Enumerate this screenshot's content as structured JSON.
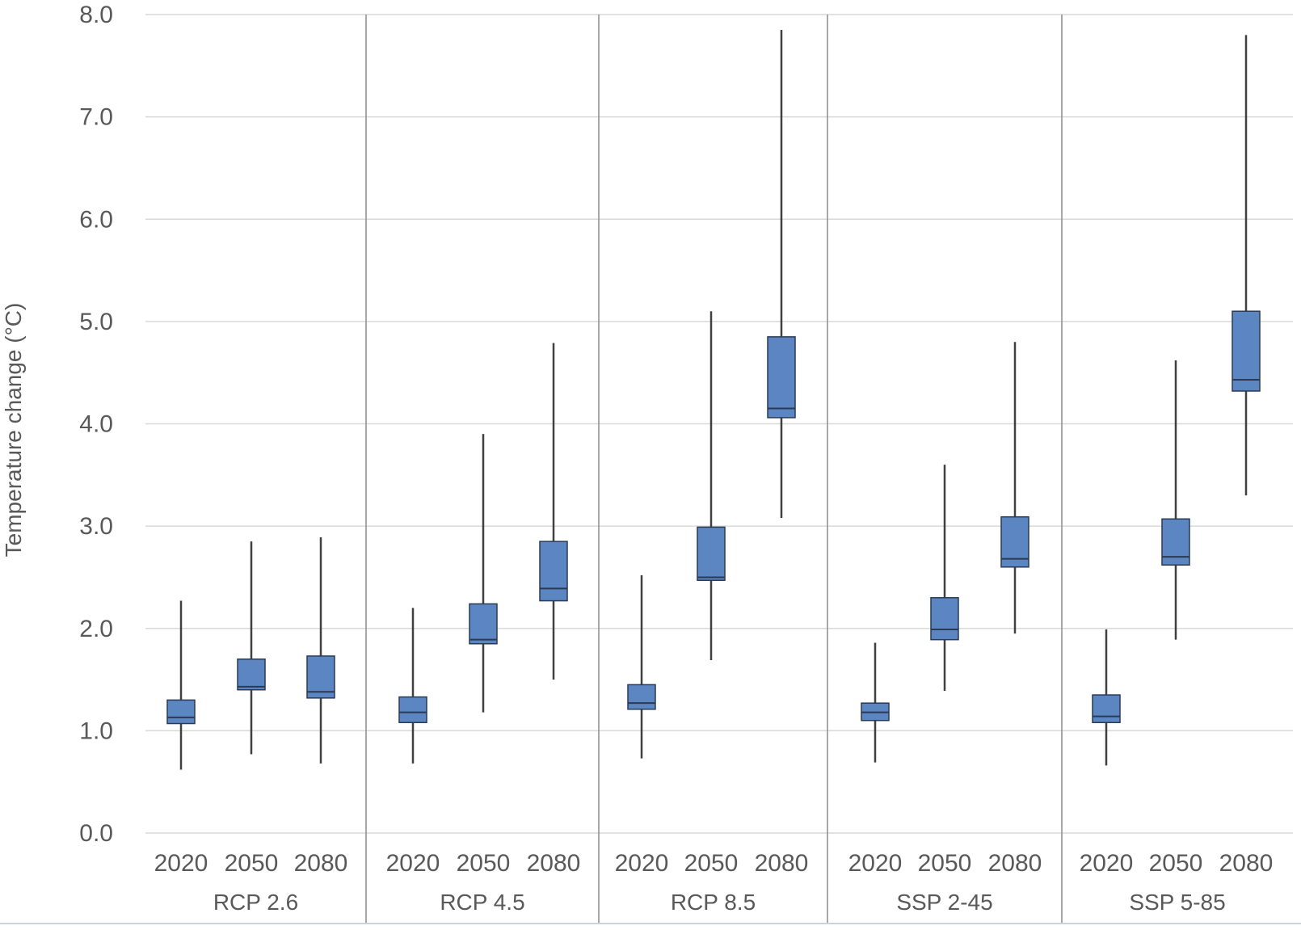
{
  "chart_data": {
    "type": "box",
    "ylabel": "Temperature change (°C)",
    "xlabel": "",
    "ylim": [
      0,
      8
    ],
    "yticks": [
      "0.0",
      "1.0",
      "2.0",
      "3.0",
      "4.0",
      "5.0",
      "6.0",
      "7.0",
      "8.0"
    ],
    "grid": true,
    "box_color": "#5b86c2",
    "box_edge_color": "#2a3a55",
    "whisker_color": "#404040",
    "grid_color": "#d9d9d9",
    "divider_color": "#8c8c8c",
    "groups": [
      {
        "name": "RCP 2.6",
        "boxes": [
          {
            "category": "2020",
            "min": 0.62,
            "q1": 1.07,
            "median": 1.13,
            "q3": 1.3,
            "max": 2.27
          },
          {
            "category": "2050",
            "min": 0.77,
            "q1": 1.4,
            "median": 1.43,
            "q3": 1.7,
            "max": 2.85
          },
          {
            "category": "2080",
            "min": 0.68,
            "q1": 1.32,
            "median": 1.38,
            "q3": 1.73,
            "max": 2.89
          }
        ]
      },
      {
        "name": "RCP 4.5",
        "boxes": [
          {
            "category": "2020",
            "min": 0.68,
            "q1": 1.08,
            "median": 1.18,
            "q3": 1.33,
            "max": 2.2
          },
          {
            "category": "2050",
            "min": 1.18,
            "q1": 1.85,
            "median": 1.89,
            "q3": 2.24,
            "max": 3.9
          },
          {
            "category": "2080",
            "min": 1.5,
            "q1": 2.27,
            "median": 2.39,
            "q3": 2.85,
            "max": 4.79
          }
        ]
      },
      {
        "name": "RCP 8.5",
        "boxes": [
          {
            "category": "2020",
            "min": 0.73,
            "q1": 1.21,
            "median": 1.27,
            "q3": 1.45,
            "max": 2.52
          },
          {
            "category": "2050",
            "min": 1.69,
            "q1": 2.47,
            "median": 2.5,
            "q3": 2.99,
            "max": 5.1
          },
          {
            "category": "2080",
            "min": 3.08,
            "q1": 4.06,
            "median": 4.15,
            "q3": 4.85,
            "max": 7.85
          }
        ]
      },
      {
        "name": "SSP 2-45",
        "boxes": [
          {
            "category": "2020",
            "min": 0.69,
            "q1": 1.1,
            "median": 1.18,
            "q3": 1.27,
            "max": 1.86
          },
          {
            "category": "2050",
            "min": 1.39,
            "q1": 1.89,
            "median": 1.99,
            "q3": 2.3,
            "max": 3.6
          },
          {
            "category": "2080",
            "min": 1.95,
            "q1": 2.6,
            "median": 2.68,
            "q3": 3.09,
            "max": 4.8
          }
        ]
      },
      {
        "name": "SSP 5-85",
        "boxes": [
          {
            "category": "2020",
            "min": 0.66,
            "q1": 1.08,
            "median": 1.14,
            "q3": 1.35,
            "max": 1.99
          },
          {
            "category": "2050",
            "min": 1.89,
            "q1": 2.62,
            "median": 2.7,
            "q3": 3.07,
            "max": 4.62
          },
          {
            "category": "2080",
            "min": 3.3,
            "q1": 4.32,
            "median": 4.43,
            "q3": 5.1,
            "max": 7.8
          }
        ]
      }
    ]
  }
}
